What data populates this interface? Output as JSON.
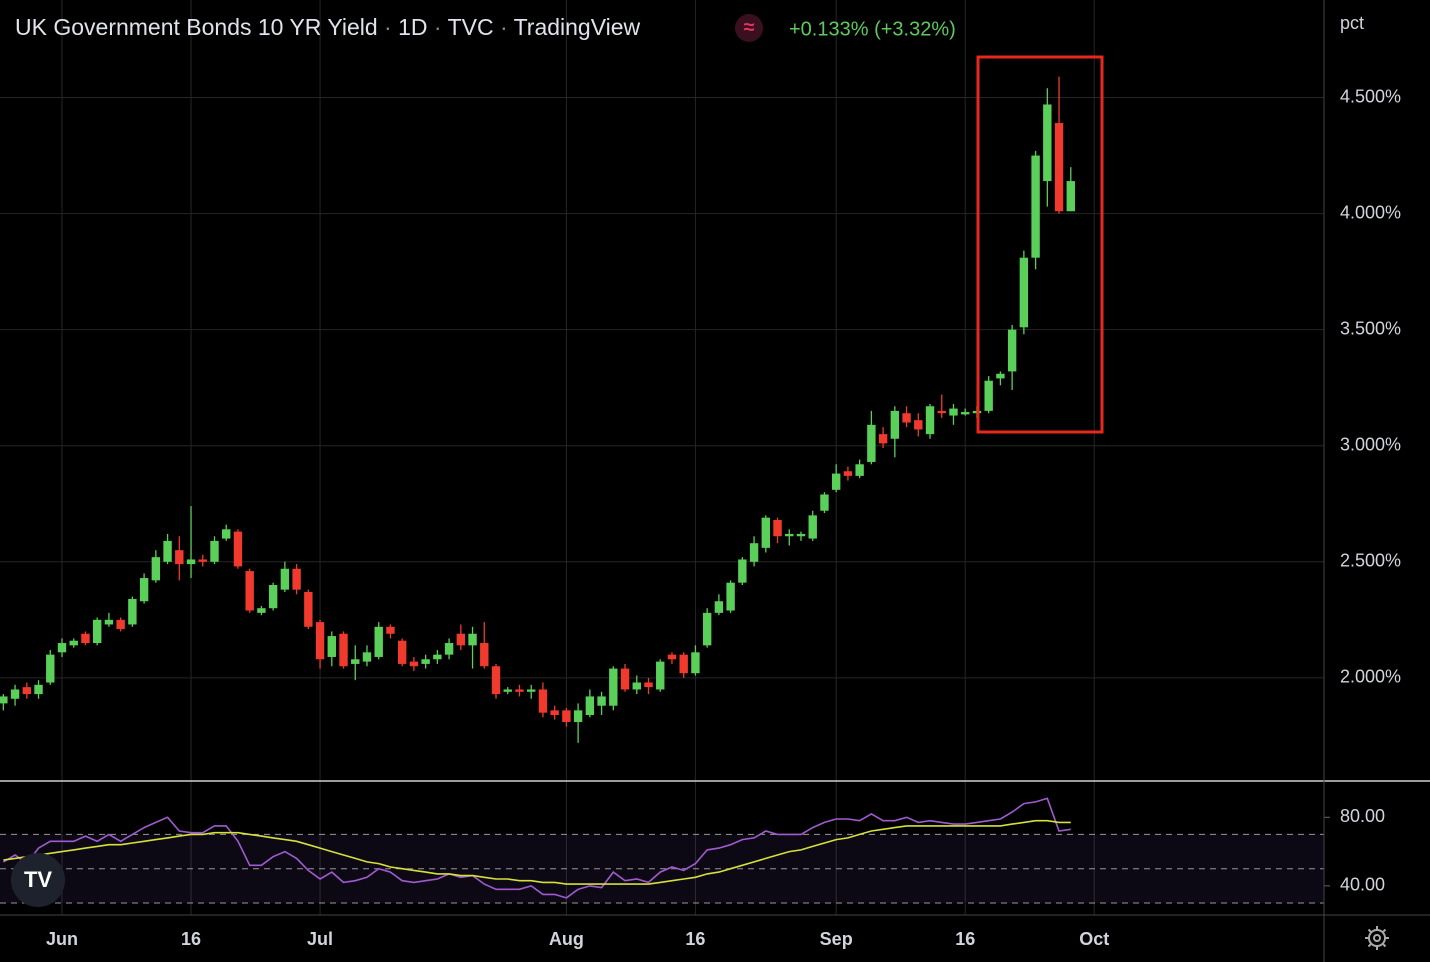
{
  "chart_data": {
    "type": "candlestick",
    "title": "UK Government Bonds 10 YR Yield",
    "interval": "1D",
    "source": "TVC",
    "publisher": "TradingView",
    "change_label": "+0.133% (+3.32%)",
    "y_unit": "pct",
    "categories": [
      null,
      null,
      null,
      null,
      null,
      "Jun",
      null,
      null,
      null,
      null,
      null,
      null,
      null,
      null,
      null,
      null,
      "16",
      null,
      null,
      null,
      null,
      null,
      null,
      null,
      null,
      null,
      null,
      "Jul",
      null,
      null,
      null,
      null,
      null,
      null,
      null,
      null,
      null,
      null,
      null,
      null,
      null,
      null,
      null,
      null,
      null,
      null,
      null,
      null,
      "Aug",
      null,
      null,
      null,
      null,
      null,
      null,
      null,
      null,
      null,
      null,
      "16",
      null,
      null,
      null,
      null,
      null,
      null,
      null,
      null,
      null,
      null,
      null,
      "Sep",
      null,
      null,
      null,
      null,
      null,
      null,
      null,
      null,
      null,
      null,
      "16",
      null,
      null,
      null,
      null,
      null,
      null,
      null,
      null,
      null,
      null,
      "Oct"
    ],
    "open": [
      1.89,
      1.91,
      1.96,
      1.93,
      1.98,
      2.11,
      2.14,
      2.19,
      2.15,
      2.23,
      2.25,
      2.23,
      2.33,
      2.42,
      2.5,
      2.55,
      2.49,
      2.51,
      2.5,
      2.6,
      2.63,
      2.46,
      2.28,
      2.3,
      2.38,
      2.47,
      2.37,
      2.24,
      2.09,
      2.19,
      2.06,
      2.07,
      2.09,
      2.22,
      2.16,
      2.07,
      2.06,
      2.08,
      2.1,
      2.19,
      2.14,
      2.15,
      2.05,
      1.94,
      1.95,
      1.94,
      1.95,
      1.86,
      1.86,
      1.81,
      1.84,
      1.88,
      1.88,
      2.04,
      1.95,
      1.98,
      1.95,
      2.1,
      2.1,
      2.02,
      2.14,
      2.28,
      2.29,
      2.41,
      2.5,
      2.56,
      2.68,
      2.61,
      2.61,
      2.6,
      2.72,
      2.81,
      2.89,
      2.87,
      2.93,
      3.05,
      3.03,
      3.14,
      3.11,
      3.05,
      3.15,
      3.13,
      3.135,
      3.14,
      3.15,
      3.29,
      3.32,
      3.51,
      3.81,
      4.14,
      4.39,
      4.01,
      null,
      null
    ],
    "high": [
      1.93,
      1.97,
      1.98,
      1.99,
      2.12,
      2.17,
      2.17,
      2.2,
      2.26,
      2.28,
      2.26,
      2.35,
      2.45,
      2.55,
      2.62,
      2.61,
      2.74,
      2.53,
      2.61,
      2.66,
      2.64,
      2.47,
      2.31,
      2.41,
      2.5,
      2.49,
      2.38,
      2.25,
      2.2,
      2.2,
      2.14,
      2.14,
      2.24,
      2.23,
      2.17,
      2.09,
      2.1,
      2.12,
      2.17,
      2.23,
      2.22,
      2.24,
      2.06,
      1.96,
      1.97,
      1.97,
      1.98,
      1.88,
      1.87,
      1.89,
      1.95,
      1.94,
      2.05,
      2.06,
      2.01,
      2.0,
      2.08,
      2.11,
      2.11,
      2.14,
      2.3,
      2.36,
      2.42,
      2.52,
      2.61,
      2.7,
      2.69,
      2.64,
      2.63,
      2.72,
      2.8,
      2.92,
      2.91,
      2.94,
      3.15,
      3.08,
      3.17,
      3.17,
      3.14,
      3.18,
      3.22,
      3.18,
      3.16,
      3.17,
      3.3,
      3.32,
      3.52,
      3.84,
      4.27,
      4.54,
      4.59,
      4.2,
      null,
      null
    ],
    "low": [
      1.86,
      1.88,
      1.91,
      1.91,
      1.97,
      2.09,
      2.13,
      2.14,
      2.14,
      2.22,
      2.2,
      2.22,
      2.32,
      2.41,
      2.49,
      2.42,
      2.43,
      2.48,
      2.49,
      2.59,
      2.47,
      2.28,
      2.27,
      2.29,
      2.37,
      2.36,
      2.21,
      2.04,
      2.05,
      2.04,
      1.99,
      2.05,
      2.08,
      2.17,
      2.05,
      2.03,
      2.04,
      2.06,
      2.08,
      2.12,
      2.04,
      2.04,
      1.91,
      1.93,
      1.92,
      1.91,
      1.83,
      1.82,
      1.79,
      1.72,
      1.83,
      1.84,
      1.86,
      1.94,
      1.93,
      1.93,
      1.94,
      2.06,
      2.0,
      2.01,
      2.13,
      2.27,
      2.28,
      2.4,
      2.48,
      2.54,
      2.58,
      2.57,
      2.59,
      2.59,
      2.71,
      2.8,
      2.85,
      2.86,
      2.92,
      2.99,
      2.95,
      3.08,
      3.04,
      3.03,
      3.12,
      3.09,
      3.13,
      3.12,
      3.14,
      3.26,
      3.24,
      3.48,
      3.76,
      4.03,
      4.0,
      4.01,
      null,
      null
    ],
    "close": [
      1.92,
      1.95,
      1.93,
      1.97,
      2.1,
      2.15,
      2.16,
      2.15,
      2.25,
      2.25,
      2.21,
      2.34,
      2.43,
      2.52,
      2.59,
      2.49,
      2.51,
      2.5,
      2.59,
      2.64,
      2.48,
      2.29,
      2.3,
      2.4,
      2.47,
      2.38,
      2.22,
      2.08,
      2.18,
      2.05,
      2.08,
      2.11,
      2.22,
      2.19,
      2.06,
      2.05,
      2.08,
      2.1,
      2.15,
      2.14,
      2.19,
      2.05,
      1.93,
      1.95,
      1.94,
      1.95,
      1.85,
      1.84,
      1.81,
      1.86,
      1.92,
      1.92,
      2.04,
      1.95,
      1.98,
      1.96,
      2.07,
      2.08,
      2.02,
      2.11,
      2.28,
      2.33,
      2.41,
      2.51,
      2.58,
      2.69,
      2.61,
      2.62,
      2.62,
      2.7,
      2.79,
      2.88,
      2.87,
      2.92,
      3.09,
      3.01,
      3.15,
      3.1,
      3.07,
      3.17,
      3.14,
      3.16,
      3.145,
      3.15,
      3.28,
      3.31,
      3.5,
      3.81,
      4.25,
      4.47,
      4.01,
      4.14,
      null,
      null
    ],
    "up_color": "#5ad05a",
    "down_color": "#f03a2e",
    "ylim": [
      1.56,
      4.92
    ],
    "yticks": [
      {
        "value": 4.5,
        "label": "4.500%"
      },
      {
        "value": 4.0,
        "label": "4.000%"
      },
      {
        "value": 3.5,
        "label": "3.500%"
      },
      {
        "value": 3.0,
        "label": "3.000%"
      },
      {
        "value": 2.5,
        "label": "2.500%"
      },
      {
        "value": 2.0,
        "label": "2.000%"
      }
    ],
    "grid": true,
    "indicator": {
      "type": "line",
      "ylim": [
        23,
        100
      ],
      "yticks": [
        {
          "value": 80,
          "label": "80.00"
        },
        {
          "value": 40,
          "label": "40.00"
        }
      ],
      "levels": [
        70,
        50,
        30
      ],
      "series": [
        {
          "color": "#a05bd0",
          "values": [
            54,
            58,
            53,
            62,
            66,
            66,
            66,
            69,
            66,
            70,
            66,
            70,
            74,
            77,
            80,
            72,
            71,
            71,
            75,
            75,
            66,
            52,
            52,
            57,
            60,
            56,
            49,
            44,
            48,
            42,
            43,
            45,
            50,
            48,
            43,
            42,
            43,
            44,
            47,
            45,
            46,
            41,
            38,
            38,
            38,
            40,
            35,
            35,
            33,
            38,
            40,
            39,
            48,
            43,
            44,
            42,
            48,
            51,
            49,
            53,
            61,
            62,
            64,
            67,
            68,
            72,
            70,
            70,
            70,
            74,
            77,
            79,
            79,
            78,
            82,
            78,
            78,
            80,
            77,
            78,
            77,
            76,
            76,
            77,
            78,
            79,
            83,
            88,
            89,
            91,
            72,
            73,
            null,
            null
          ]
        },
        {
          "color": "#d6e03a",
          "values": [
            55,
            56,
            57,
            58,
            59,
            60,
            61,
            62,
            63,
            64,
            64,
            65,
            66,
            67,
            68,
            69,
            70,
            70,
            71,
            71,
            71,
            70,
            69,
            68,
            67,
            66,
            64,
            62,
            60,
            58,
            56,
            54,
            53,
            51,
            50,
            49,
            48,
            47,
            47,
            46,
            46,
            45,
            44,
            44,
            43,
            43,
            42,
            42,
            41,
            41,
            41,
            41,
            41,
            41,
            41,
            41,
            42,
            43,
            44,
            45,
            47,
            48,
            50,
            52,
            54,
            56,
            58,
            60,
            61,
            63,
            65,
            67,
            68,
            70,
            72,
            73,
            74,
            75,
            75,
            75,
            75,
            75,
            75,
            75,
            75,
            75,
            76,
            77,
            78,
            78,
            77,
            77,
            null,
            null
          ]
        }
      ]
    }
  }
}
